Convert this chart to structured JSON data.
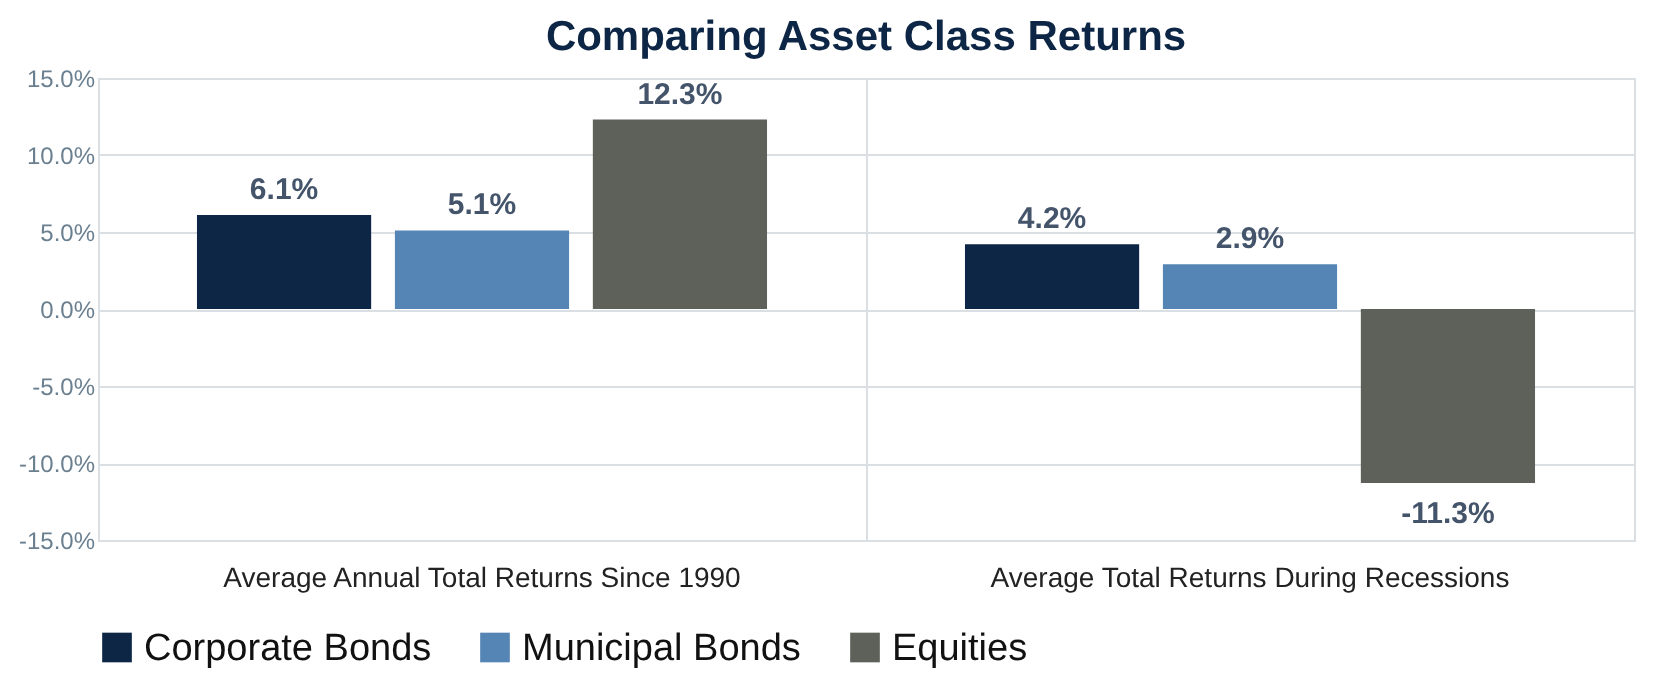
{
  "chart_data": {
    "type": "bar",
    "title": "Comparing Asset Class Returns",
    "categories": [
      "Average Annual Total Returns Since 1990",
      "Average Total Returns During Recessions"
    ],
    "series": [
      {
        "name": "Corporate Bonds",
        "color": "#0d2645",
        "values": [
          6.1,
          4.2
        ],
        "value_labels": [
          "6.1%",
          "4.2%"
        ]
      },
      {
        "name": "Municipal Bonds",
        "color": "#5585b5",
        "values": [
          5.1,
          2.9
        ],
        "value_labels": [
          "5.1%",
          "2.9%"
        ]
      },
      {
        "name": "Equities",
        "color": "#5e605a",
        "values": [
          12.3,
          -11.3
        ],
        "value_labels": [
          "12.3%",
          "-11.3%"
        ]
      }
    ],
    "ylim": [
      -15,
      15
    ],
    "yticks": [
      {
        "value": -15,
        "label": "-15.0%"
      },
      {
        "value": -10,
        "label": "-10.0%"
      },
      {
        "value": -5,
        "label": "-5.0%"
      },
      {
        "value": 0,
        "label": "0.0%"
      },
      {
        "value": 5,
        "label": "5.0%"
      },
      {
        "value": 10,
        "label": "10.0%"
      },
      {
        "value": 15,
        "label": "15.0%"
      }
    ],
    "grid": true,
    "legend": "bottom"
  }
}
